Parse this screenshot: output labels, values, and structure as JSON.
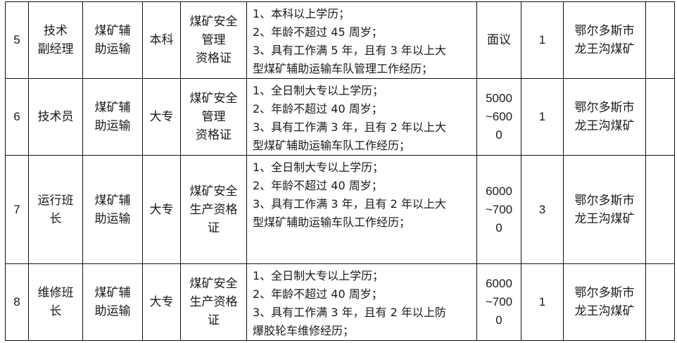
{
  "rows": [
    {
      "no": "5",
      "position": "技术\n副经理",
      "category": "煤矿辅\n助运输",
      "education": "本科",
      "certificate": "煤矿安全\n管理\n资格证",
      "requirements": [
        "1、本科以上学历；",
        "2、年龄不超过 45 周岁；",
        "3、具有工作满 5 年，且有 3 年以上大",
        "型煤矿辅助运输车队管理工作经历；"
      ],
      "salary": "面议",
      "count": "1",
      "location": "鄂尔多斯市\n龙王沟煤矿",
      "note": ""
    },
    {
      "no": "6",
      "position": "技术员",
      "category": "煤矿辅\n助运输",
      "education": "大专",
      "certificate": "煤矿安全\n管理\n资格证",
      "requirements": [
        "1、全日制大专以上学历；",
        "2、年龄不超过 40 周岁；",
        "3、具有工作满 3 年，且有 2 年以上大",
        "型煤矿辅助运输车队工作经历；"
      ],
      "salary": "5000\n~600\n0",
      "count": "1",
      "location": "鄂尔多斯市\n龙王沟煤矿",
      "note": ""
    },
    {
      "no": "7",
      "position": "运行班\n长",
      "category": "煤矿辅\n助运输",
      "education": "大专",
      "certificate": "煤矿安全\n生产资格\n证",
      "requirements": [
        "1、全日制大专以上学历；",
        "2、年龄不超过 40 周岁；",
        "3、具有工作满 3 年，且有 2 年以上大",
        "型煤矿辅助运输车队工作经历；"
      ],
      "salary": "6000\n~700\n0",
      "count": "3",
      "location": "鄂尔多斯市\n龙王沟煤矿",
      "note": ""
    },
    {
      "no": "8",
      "position": "维修班\n长",
      "category": "煤矿辅\n助运输",
      "education": "大专",
      "certificate": "煤矿安全\n生产资格\n证",
      "requirements": [
        "1、全日制大专以上学历；",
        "2、年龄不超过 40 周岁；",
        "3、具有工作满 3 年，且有 2 年以上防",
        "爆胶轮车维修经历；"
      ],
      "salary": "6000\n~700\n0",
      "count": "1",
      "location": "鄂尔多斯市\n龙王沟煤矿",
      "note": ""
    }
  ]
}
